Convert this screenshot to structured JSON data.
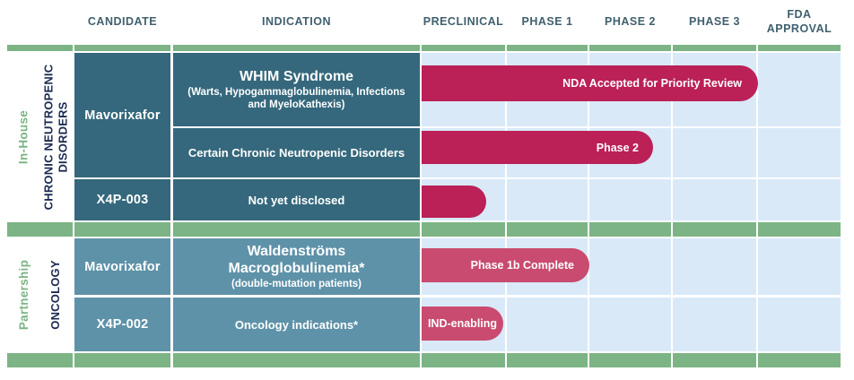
{
  "header": {
    "candidate": "CANDIDATE",
    "indication": "INDICATION",
    "phases": [
      "PRECLINICAL",
      "PHASE 1",
      "PHASE 2",
      "PHASE 3",
      "FDA APPROVAL"
    ]
  },
  "sections": [
    {
      "group": "In-House",
      "category": "CHRONIC NEUTROPENIC DISORDERS",
      "rows": [
        {
          "candidate": "Mavorixafor",
          "indication_title": "WHIM Syndrome",
          "indication_sub": "(Warts, Hypogammaglobulinemia, Infections and MyeloKathexis)",
          "bar": {
            "label": "NDA Accepted for Priority Review",
            "extends_through": "PHASE 3"
          }
        },
        {
          "candidate": "Mavorixafor",
          "indication_title": "Certain Chronic Neutropenic Disorders",
          "bar": {
            "label": "Phase 2",
            "extends_through": "PHASE 2"
          }
        },
        {
          "candidate": "X4P-003",
          "indication_title": "Not yet disclosed",
          "bar": {
            "label": "",
            "extends_through": "PRECLINICAL"
          }
        }
      ]
    },
    {
      "group": "Partnership",
      "category": "ONCOLOGY",
      "rows": [
        {
          "candidate": "Mavorixafor",
          "indication_title": "Waldenströms Macroglobulinemia*",
          "indication_sub": "(double-mutation patients)",
          "bar": {
            "label": "Phase 1b Complete",
            "extends_through": "PHASE 1"
          }
        },
        {
          "candidate": "X4P-002",
          "indication_title": "Oncology indications*",
          "bar": {
            "label": "IND-enabling",
            "extends_through": "PRECLINICAL"
          }
        }
      ]
    }
  ],
  "colors": {
    "bar_deep_crimson": "#bb2056",
    "bar_light_rose": "#c94b6f",
    "cell_teal_dark": "#35687c",
    "cell_teal_light": "#5e92a8",
    "accent_green": "#7cb485",
    "grid_light_blue": "#d9e9f8",
    "label_navy": "#1b2a52",
    "header_text": "#40606e"
  }
}
